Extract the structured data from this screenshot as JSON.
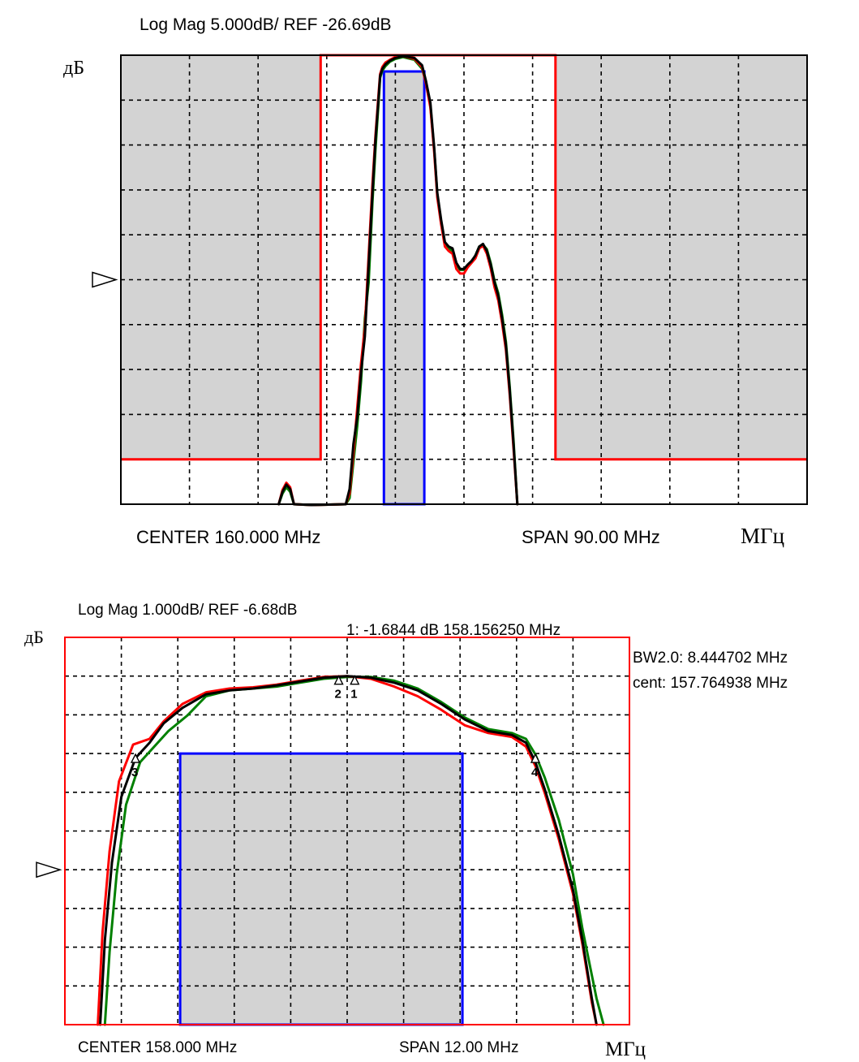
{
  "chart_data": [
    {
      "type": "line",
      "title": "Log Mag 5.000dB/  REF -26.69dB",
      "ylabel": "дБ",
      "xlabel": "МГц",
      "center_label": "CENTER 160.000 MHz",
      "span_label": "SPAN 90.00 MHz",
      "grid": true,
      "x_range": [
        115,
        205
      ],
      "y_range": [
        -76.69,
        -26.69
      ],
      "reference_level": -51.69,
      "colors": {
        "frame": "#000000",
        "mask": "#ff0000",
        "passband": "#0000ff",
        "fill": "#d3d3d3",
        "trace1": "#000000",
        "trace2": "#ff0000",
        "trace3": "#008000"
      },
      "mask_segments": [
        [
          [
            115,
            -71.69
          ],
          [
            141.2,
            -71.69
          ],
          [
            141.2,
            -26.69
          ],
          [
            172,
            -26.69
          ],
          [
            172,
            -71.69
          ],
          [
            205,
            -71.69
          ]
        ]
      ],
      "gray_regions": [
        {
          "x": [
            115,
            141.2
          ],
          "y": [
            -71.69,
            -26.69
          ]
        },
        {
          "x": [
            172,
            205
          ],
          "y": [
            -71.69,
            -26.69
          ]
        },
        {
          "x": [
            149.5,
            154.8
          ],
          "y": [
            -76.69,
            -28.5
          ]
        }
      ],
      "passband_rect": {
        "x": [
          149.5,
          154.8
        ],
        "y": [
          -76.69,
          -28.5
        ]
      },
      "series": [
        {
          "color": "#000000",
          "x": [
            135.7,
            136.2,
            136.7,
            137.2,
            137.7,
            140.0,
            144.5,
            145.0,
            145.5,
            146.0,
            146.5,
            147.0,
            147.5,
            148.0,
            148.4,
            148.8,
            149.0,
            149.3,
            149.7,
            150.3,
            151.0,
            152.0,
            153.5,
            154.5,
            155.0,
            155.6,
            156.1,
            156.5,
            157.0,
            157.5,
            158.0,
            158.5,
            159.0,
            159.5,
            160.0,
            160.5,
            161.0,
            161.5,
            162.0,
            162.5,
            163.0,
            163.5,
            164.0,
            164.5,
            165.0,
            165.5,
            166.0,
            166.5,
            167.0
          ],
          "y": [
            -76.69,
            -75.3,
            -74.5,
            -75.0,
            -76.69,
            -78.0,
            -76.69,
            -75.0,
            -70.0,
            -67.0,
            -62.0,
            -58.0,
            -50.0,
            -42.0,
            -36.0,
            -31.5,
            -29.0,
            -28.2,
            -27.7,
            -27.3,
            -27.0,
            -26.8,
            -27.0,
            -27.8,
            -29.5,
            -32.0,
            -37.0,
            -42.0,
            -45.0,
            -47.5,
            -48.0,
            -48.2,
            -49.8,
            -50.5,
            -50.5,
            -50.0,
            -49.6,
            -49.0,
            -48.0,
            -47.7,
            -48.5,
            -50.0,
            -52.0,
            -53.5,
            -56.0,
            -59.0,
            -64.0,
            -70.0,
            -76.69
          ]
        },
        {
          "color": "#ff0000",
          "x": [
            135.7,
            136.2,
            136.7,
            137.2,
            137.7,
            140.0,
            144.5,
            145.0,
            145.5,
            146.0,
            146.5,
            147.0,
            147.5,
            148.0,
            148.4,
            148.8,
            149.0,
            149.3,
            149.7,
            150.3,
            151.0,
            152.0,
            153.5,
            154.5,
            155.0,
            155.6,
            156.1,
            156.5,
            157.0,
            157.5,
            158.0,
            158.5,
            159.0,
            159.5,
            160.0,
            160.5,
            161.0,
            161.5,
            162.0,
            162.5,
            163.0,
            163.5,
            164.0,
            164.5,
            165.0,
            165.5,
            166.0,
            166.5,
            167.0
          ],
          "y": [
            -76.69,
            -75.1,
            -74.3,
            -74.8,
            -76.69,
            -78.0,
            -76.69,
            -75.5,
            -71.0,
            -66.0,
            -61.0,
            -57.0,
            -49.0,
            -41.0,
            -35.5,
            -31.0,
            -28.8,
            -28.0,
            -27.5,
            -27.2,
            -26.9,
            -26.8,
            -27.1,
            -28.0,
            -29.8,
            -32.5,
            -37.5,
            -42.5,
            -45.5,
            -48.0,
            -48.5,
            -48.8,
            -50.5,
            -51.0,
            -51.0,
            -50.3,
            -49.8,
            -49.3,
            -48.2,
            -47.9,
            -48.8,
            -50.4,
            -52.5,
            -54.0,
            -56.5,
            -59.5,
            -64.5,
            -70.5,
            -76.69
          ]
        },
        {
          "color": "#008000",
          "x": [
            135.7,
            136.2,
            136.7,
            137.2,
            137.7,
            140.0,
            144.5,
            145.0,
            145.5,
            146.0,
            146.5,
            147.0,
            147.5,
            148.0,
            148.4,
            148.8,
            149.0,
            149.3,
            149.7,
            150.3,
            151.0,
            152.0,
            153.5,
            154.5,
            155.0,
            155.6,
            156.1,
            156.5,
            157.0,
            157.5,
            158.0,
            158.5,
            159.0,
            159.5,
            160.0,
            160.5,
            161.0,
            161.5,
            162.0,
            162.5,
            163.0,
            163.5,
            164.0,
            164.5,
            165.0,
            165.5,
            166.0,
            166.5,
            167.0
          ],
          "y": [
            -76.69,
            -75.5,
            -74.8,
            -75.3,
            -76.69,
            -78.0,
            -76.69,
            -76.0,
            -72.0,
            -68.0,
            -63.0,
            -56.0,
            -52.0,
            -43.0,
            -37.0,
            -32.0,
            -29.2,
            -28.4,
            -27.9,
            -27.4,
            -27.1,
            -26.9,
            -27.2,
            -28.2,
            -29.6,
            -32.3,
            -37.2,
            -42.2,
            -45.2,
            -47.6,
            -48.2,
            -48.5,
            -50.0,
            -50.6,
            -50.6,
            -50.1,
            -49.7,
            -49.0,
            -48.0,
            -47.8,
            -48.3,
            -49.8,
            -51.8,
            -53.2,
            -55.6,
            -58.6,
            -63.6,
            -69.6,
            -76.69
          ]
        }
      ]
    },
    {
      "type": "line",
      "title": "Log Mag 1.000dB/  REF -6.68dB",
      "ylabel": "дБ",
      "xlabel": "МГц",
      "center_label": "CENTER 158.000 MHz",
      "span_label": "SPAN 12.00 MHz",
      "marker_readout": "1:  -1.6844 dB 158.156250 MHz",
      "bw_label": "BW2.0: 8.444702 MHz",
      "cent_label": "cent: 157.764938 MHz",
      "grid": true,
      "x_range": [
        152,
        164
      ],
      "y_range": [
        -10.68,
        -0.68
      ],
      "reference_level": -6.68,
      "colors": {
        "frame": "#ff0000",
        "passband": "#0000ff",
        "fill": "#d3d3d3",
        "trace1": "#000000",
        "trace2": "#ff0000",
        "trace3": "#008000"
      },
      "passband_rect": {
        "x": [
          154.45,
          160.45
        ],
        "y": [
          -10.68,
          -3.68
        ]
      },
      "markers": [
        {
          "label": "1",
          "x": 158.16,
          "y": -1.68
        },
        {
          "label": "2",
          "x": 157.82,
          "y": -1.68
        },
        {
          "label": "3",
          "x": 153.5,
          "y": -3.7
        },
        {
          "label": "4",
          "x": 162.0,
          "y": -3.7
        }
      ],
      "series": [
        {
          "color": "#000000",
          "x": [
            152.75,
            152.85,
            153.0,
            153.2,
            153.5,
            153.8,
            154.1,
            154.5,
            155.0,
            155.5,
            156.0,
            156.5,
            157.0,
            157.5,
            158.0,
            158.5,
            159.0,
            159.5,
            160.0,
            160.5,
            161.0,
            161.5,
            161.8,
            162.0,
            162.2,
            162.5,
            162.8,
            163.0,
            163.2,
            163.3
          ],
          "y": [
            -10.68,
            -8.5,
            -6.5,
            -4.8,
            -3.8,
            -3.4,
            -2.9,
            -2.5,
            -2.15,
            -2.05,
            -2.0,
            -1.92,
            -1.82,
            -1.72,
            -1.68,
            -1.72,
            -1.85,
            -2.05,
            -2.4,
            -2.8,
            -3.1,
            -3.2,
            -3.4,
            -3.9,
            -4.6,
            -5.8,
            -7.2,
            -8.5,
            -10.0,
            -10.68
          ]
        },
        {
          "color": "#ff0000",
          "x": [
            152.7,
            152.8,
            152.95,
            153.15,
            153.45,
            153.8,
            154.1,
            154.5,
            155.0,
            155.5,
            156.0,
            156.5,
            157.0,
            157.5,
            158.0,
            158.5,
            159.0,
            159.5,
            160.0,
            160.5,
            161.0,
            161.5,
            161.8,
            162.0,
            162.2,
            162.5,
            162.8,
            163.0,
            163.2,
            163.3
          ],
          "y": [
            -10.68,
            -8.3,
            -6.2,
            -4.4,
            -3.45,
            -3.3,
            -2.85,
            -2.4,
            -2.1,
            -2.0,
            -1.97,
            -1.9,
            -1.8,
            -1.7,
            -1.68,
            -1.75,
            -1.95,
            -2.2,
            -2.55,
            -2.95,
            -3.15,
            -3.25,
            -3.5,
            -4.0,
            -4.7,
            -5.9,
            -7.3,
            -8.6,
            -10.1,
            -10.68
          ]
        },
        {
          "color": "#008000",
          "x": [
            152.85,
            152.95,
            153.1,
            153.3,
            153.6,
            153.9,
            154.2,
            154.6,
            155.0,
            155.5,
            156.0,
            156.5,
            157.0,
            157.5,
            158.0,
            158.5,
            159.0,
            159.5,
            160.0,
            160.5,
            161.0,
            161.5,
            161.8,
            162.0,
            162.2,
            162.5,
            162.8,
            163.0,
            163.3,
            163.45
          ],
          "y": [
            -10.68,
            -8.8,
            -6.8,
            -5.0,
            -3.9,
            -3.5,
            -3.1,
            -2.7,
            -2.2,
            -2.05,
            -2.0,
            -1.95,
            -1.85,
            -1.75,
            -1.7,
            -1.7,
            -1.8,
            -2.0,
            -2.35,
            -2.75,
            -3.05,
            -3.15,
            -3.3,
            -3.7,
            -4.3,
            -5.4,
            -6.8,
            -8.2,
            -10.0,
            -10.68
          ]
        }
      ]
    }
  ]
}
